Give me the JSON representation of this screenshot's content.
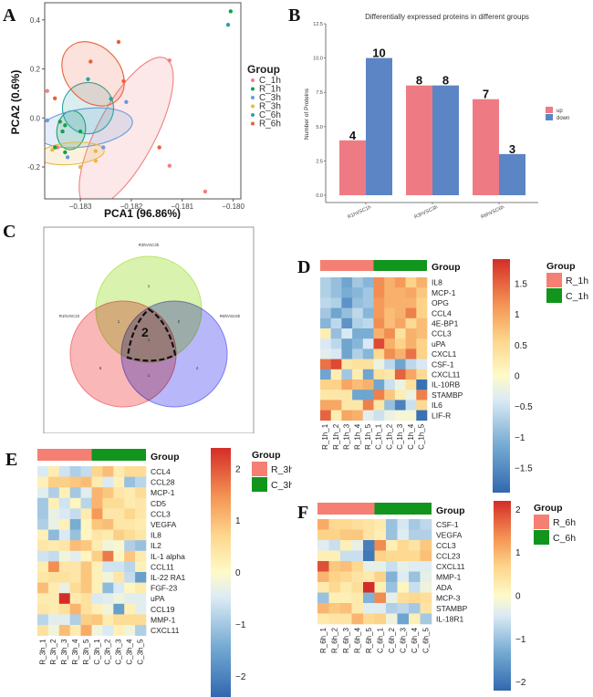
{
  "panels": {
    "A": {
      "letter": "A"
    },
    "B": {
      "letter": "B"
    },
    "C": {
      "letter": "C"
    },
    "D": {
      "letter": "D"
    },
    "E": {
      "letter": "E"
    },
    "F": {
      "letter": "F"
    }
  },
  "chart_data": [
    {
      "id": "A",
      "type": "scatter",
      "title": "",
      "xlabel": "PCA1 (96.86%)",
      "ylabel": "PCA2 (0.6%)",
      "xlim": [
        -0.1837,
        -0.17985
      ],
      "ylim": [
        -0.33,
        0.47
      ],
      "xticks": [
        -0.183,
        -0.182,
        -0.181,
        -0.18
      ],
      "xtick_labels": [
        "-0.183",
        "-0.182",
        "-0.181",
        "-0.180"
      ],
      "yticks": [
        -0.2,
        0.0,
        0.2,
        0.4
      ],
      "ytick_labels": [
        "-0.2",
        "0.0",
        "0.2",
        "0.4"
      ],
      "legend": {
        "title": "Group",
        "position": "right"
      },
      "ellipses": true,
      "series": [
        {
          "name": "C_1h",
          "color": "#f08080",
          "points": [
            [
              -0.18365,
              0.11
            ],
            [
              -0.18125,
              0.235
            ],
            [
              -0.18125,
              -0.195
            ],
            [
              -0.18055,
              -0.3
            ],
            [
              -0.18345,
              -0.12
            ]
          ],
          "ellipse": {
            "cx": -0.1821,
            "cy": -0.06,
            "rx": 0.00165,
            "ry": 0.215,
            "angle": -62
          }
        },
        {
          "name": "R_1h",
          "color": "#11a34a",
          "points": [
            [
              -0.18005,
              0.435
            ],
            [
              -0.1834,
              -0.015
            ],
            [
              -0.1833,
              -0.03
            ],
            [
              -0.18335,
              -0.055
            ],
            [
              -0.183,
              -0.055
            ],
            [
              -0.1833,
              -0.14
            ],
            [
              -0.1835,
              -0.12
            ]
          ],
          "ellipse": {
            "cx": -0.18318,
            "cy": -0.05,
            "rx": 0.00028,
            "ry": 0.145,
            "angle": 8
          }
        },
        {
          "name": "C_3h",
          "color": "#6a9bde",
          "points": [
            [
              -0.18365,
              -0.01
            ],
            [
              -0.18255,
              -0.12
            ],
            [
              -0.1821,
              0.065
            ],
            [
              -0.18325,
              -0.16
            ]
          ],
          "ellipse": {
            "cx": -0.18292,
            "cy": -0.04,
            "rx": 0.00095,
            "ry": 0.14,
            "angle": -8
          }
        },
        {
          "name": "R_3h",
          "color": "#e8b84a",
          "points": [
            [
              -0.183,
              -0.2
            ],
            [
              -0.1827,
              -0.135
            ],
            [
              -0.18355,
              -0.13
            ],
            [
              -0.1827,
              -0.175
            ]
          ],
          "ellipse": {
            "cx": -0.18318,
            "cy": -0.145,
            "rx": 0.00065,
            "ry": 0.055,
            "angle": -5
          }
        },
        {
          "name": "C_6h",
          "color": "#2aa3a3",
          "points": [
            [
              -0.1801,
              0.38
            ],
            [
              -0.18285,
              0.158
            ],
            [
              -0.1824,
              0.078
            ]
          ],
          "ellipse": {
            "cx": -0.18285,
            "cy": 0.04,
            "rx": 0.0005,
            "ry": 0.19,
            "angle": 35
          }
        },
        {
          "name": "R_6h",
          "color": "#e8603c",
          "points": [
            [
              -0.18225,
              0.31
            ],
            [
              -0.1828,
              0.23
            ],
            [
              -0.18215,
              0.15
            ],
            [
              -0.1835,
              0.08
            ],
            [
              -0.18145,
              -0.12
            ]
          ],
          "ellipse": {
            "cx": -0.18275,
            "cy": 0.18,
            "rx": 0.0007,
            "ry": 0.2,
            "angle": 48
          }
        }
      ]
    },
    {
      "id": "B",
      "type": "bar",
      "title": "Differentially expressed proteins in different groups",
      "xlabel": "",
      "ylabel": "Number of Proteins",
      "ylim": [
        0,
        12.5
      ],
      "yticks": [
        0.0,
        2.5,
        5.0,
        7.5,
        10.0,
        12.5
      ],
      "ytick_labels": [
        "0.0",
        "2.5",
        "5.0",
        "7.5",
        "10.0",
        "12.5"
      ],
      "categories": [
        "R1hVSC1h",
        "R3hVSC3h",
        "R6hVSC6h"
      ],
      "series": [
        {
          "name": "up",
          "color": "#ee7b84",
          "values": [
            4,
            8,
            7
          ]
        },
        {
          "name": "down",
          "color": "#5b85c5",
          "values": [
            10,
            8,
            3
          ]
        }
      ],
      "legend": {
        "position": "right",
        "entries": [
          "up",
          "down"
        ]
      }
    },
    {
      "id": "C",
      "type": "venn",
      "sets": [
        {
          "name": "R1hVSC1h",
          "color": "#f47c7c"
        },
        {
          "name": "R3hVSC3h",
          "color": "#b9e86a"
        },
        {
          "name": "R6hVSC6h",
          "color": "#7b7bf5"
        }
      ],
      "regions": {
        "R1h_only": 6,
        "R3h_only": 1,
        "R6h_only": 4,
        "R1h_R3h": 1,
        "R3h_R6h": 0,
        "R1h_R6h": 1,
        "all": 1
      },
      "highlight_label": "2"
    },
    {
      "id": "D",
      "type": "heatmap",
      "rows": [
        "IL8",
        "MCP-1",
        "OPG",
        "CCL4",
        "4E-BP1",
        "CCL3",
        "uPA",
        "CXCL1",
        "CSF-1",
        "CXCL11",
        "IL-10RB",
        "STAMBP",
        "IL6",
        "LIF-R"
      ],
      "cols": [
        "R_1h_1",
        "R_1h_2",
        "R_1h_3",
        "R_1h_4",
        "R_1h_5",
        "C_1h_1",
        "C_1h_2",
        "C_1h_3",
        "C_1h_4",
        "C_1h_5"
      ],
      "annotation": {
        "title": "Group",
        "groups": [
          {
            "name": "R_1h",
            "color": "#f47f72",
            "count": 5
          },
          {
            "name": "C_1h",
            "color": "#11951c",
            "count": 5
          }
        ]
      },
      "color_scale": {
        "min": -1.9,
        "max": 1.9,
        "ticks": [
          1.5,
          1,
          0.5,
          0,
          -0.5,
          -1,
          -1.5
        ],
        "tick_labels": [
          "1.5",
          "1",
          "0.5",
          "0",
          "-0.5",
          "-1",
          "-1.5"
        ]
      },
      "values": [
        [
          -0.7,
          -0.9,
          -1.2,
          -0.8,
          -1.0,
          1.2,
          0.9,
          1.1,
          0.6,
          0.9
        ],
        [
          -0.7,
          -0.9,
          -1.1,
          -1.0,
          -0.8,
          1.2,
          0.9,
          0.9,
          1.0,
          0.7
        ],
        [
          -0.6,
          -0.7,
          -1.4,
          -0.9,
          -0.8,
          1.1,
          0.9,
          0.9,
          0.9,
          0.6
        ],
        [
          -0.8,
          -1.2,
          -0.9,
          -0.6,
          -1.0,
          1.1,
          0.8,
          0.9,
          1.3,
          0.6
        ],
        [
          -1.0,
          -0.6,
          -1.4,
          -0.7,
          -0.6,
          1.2,
          0.8,
          1.0,
          0.5,
          0.8
        ],
        [
          0.2,
          -0.9,
          -0.4,
          -1.1,
          -1.1,
          0.9,
          1.2,
          0.4,
          0.9,
          0.8
        ],
        [
          -0.4,
          -0.6,
          -1.2,
          -1.0,
          -0.4,
          1.7,
          0.9,
          0.6,
          0.9,
          0.6
        ],
        [
          -0.3,
          -0.4,
          -1.2,
          -0.7,
          -1.0,
          0.5,
          1.2,
          0.9,
          1.4,
          0.6
        ],
        [
          1.4,
          1.7,
          0.3,
          0.4,
          0.4,
          -0.2,
          -0.6,
          -1.2,
          -0.6,
          -0.4
        ],
        [
          -1.2,
          0.2,
          -0.8,
          0.2,
          -1.2,
          0.4,
          0.3,
          1.5,
          1.0,
          0.5
        ],
        [
          0.6,
          0.6,
          1.0,
          0.8,
          0.9,
          -1.2,
          -0.5,
          -0.2,
          0.4,
          -1.8
        ],
        [
          0.3,
          0.3,
          0.3,
          -1.2,
          -1.2,
          1.3,
          0.7,
          0.2,
          -0.2,
          1.3
        ],
        [
          1.0,
          1.0,
          0.3,
          0.3,
          1.3,
          0.3,
          -0.9,
          -1.6,
          -0.5,
          0.5
        ],
        [
          1.5,
          0.2,
          1.0,
          0.9,
          -0.3,
          -0.5,
          -0.2,
          -0.1,
          -0.1,
          -1.8
        ]
      ]
    },
    {
      "id": "E",
      "type": "heatmap",
      "rows": [
        "CCL4",
        "CCL28",
        "MCP-1",
        "CD5",
        "CCL3",
        "VEGFA",
        "IL8",
        "IL2",
        "IL-1 alpha",
        "CCL11",
        "IL-22 RA1",
        "FGF-23",
        "uPA",
        "CCL19",
        "MMP-1",
        "CXCL11"
      ],
      "cols": [
        "R_3h_1",
        "R_3h_2",
        "R_3h_3",
        "R_3h_4",
        "R_3h_5",
        "C_3h_1",
        "C_3h_2",
        "C_3h_3",
        "C_3h_4",
        "C_3h_5"
      ],
      "annotation": {
        "title": "Group",
        "groups": [
          {
            "name": "R_3h",
            "color": "#f47f72",
            "count": 5
          },
          {
            "name": "C_3h",
            "color": "#11951c",
            "count": 5
          }
        ]
      },
      "color_scale": {
        "min": -2.4,
        "max": 2.4,
        "ticks": [
          2,
          1,
          0,
          -1,
          -2
        ],
        "tick_labels": [
          "2",
          "1",
          "0",
          "-1",
          "-2"
        ]
      },
      "values": [
        [
          -0.5,
          0.3,
          -0.6,
          -0.9,
          -0.7,
          0.7,
          1.0,
          0.3,
          0.6,
          0.6
        ],
        [
          0.2,
          0.8,
          0.8,
          0.9,
          1.0,
          0.3,
          -0.5,
          0.2,
          -1.1,
          -0.8
        ],
        [
          -0.4,
          -0.9,
          0.2,
          -1.0,
          -0.4,
          1.1,
          0.9,
          0.4,
          0.3,
          0.6
        ],
        [
          -1.0,
          0.2,
          -0.6,
          0.1,
          -0.8,
          1.1,
          0.6,
          0.6,
          0.3,
          0.4
        ],
        [
          -1.0,
          -0.3,
          -0.5,
          -0.7,
          0.3,
          1.4,
          0.4,
          0.4,
          0.7,
          0.4
        ],
        [
          -0.9,
          -0.3,
          0.2,
          -1.4,
          0.1,
          0.9,
          1.0,
          0.4,
          0.4,
          0.3
        ],
        [
          0.2,
          -1.2,
          -0.5,
          -1.1,
          0.1,
          0.4,
          0.3,
          0.8,
          0.6,
          0.4
        ],
        [
          0.4,
          0.3,
          0.4,
          1.0,
          0.9,
          0.3,
          -0.2,
          -0.1,
          -0.9,
          -1.1
        ],
        [
          -0.6,
          -0.7,
          -0.2,
          -0.4,
          0.1,
          0.8,
          1.7,
          0.1,
          0.9,
          0.3
        ],
        [
          0.3,
          1.5,
          0.4,
          0.4,
          0.9,
          0.2,
          -0.6,
          -0.6,
          -0.8,
          0.2
        ],
        [
          0.4,
          0.5,
          0.5,
          0.4,
          0.9,
          0.2,
          -0.2,
          0.4,
          -0.7,
          -1.6
        ],
        [
          1.0,
          0.3,
          -0.3,
          0.6,
          0.9,
          0.2,
          -1.2,
          -0.5,
          0.1,
          0.3
        ],
        [
          0.3,
          0.3,
          2.4,
          0.3,
          0.5,
          -0.5,
          -0.4,
          -0.2,
          -0.4,
          -0.4
        ],
        [
          0.4,
          0.3,
          0.5,
          1.1,
          0.5,
          0.2,
          -0.2,
          -1.6,
          0.2,
          -0.4
        ],
        [
          -0.8,
          -0.4,
          -0.4,
          -0.9,
          0.8,
          0.9,
          0.3,
          0.6,
          0.6,
          0.6
        ],
        [
          0.5,
          -0.2,
          1.0,
          0.3,
          1.2,
          -0.2,
          -0.5,
          0.2,
          -0.2,
          -0.9
        ]
      ]
    },
    {
      "id": "F",
      "type": "heatmap",
      "rows": [
        "CSF-1",
        "VEGFA",
        "CCL3",
        "CCL23",
        "CXCL11",
        "MMP-1",
        "ADA",
        "MCP-3",
        "STAMBP",
        "IL-18R1"
      ],
      "cols": [
        "R_6h_1",
        "R_6h_2",
        "R_6h_3",
        "R_6h_4",
        "R_6h_5",
        "C_6h_1",
        "C_6h_2",
        "C_6h_3",
        "C_6h_4",
        "C_6h_5"
      ],
      "annotation": {
        "title": "Group",
        "groups": [
          {
            "name": "R_6h",
            "color": "#f47f72",
            "count": 5
          },
          {
            "name": "C_6h",
            "color": "#11951c",
            "count": 5
          }
        ]
      },
      "color_scale": {
        "min": -2.2,
        "max": 2.2,
        "ticks": [
          2,
          1,
          0,
          -1,
          -2
        ],
        "tick_labels": [
          "2",
          "1",
          "0",
          "-1",
          "-2"
        ]
      },
      "values": [
        [
          1.1,
          0.6,
          0.6,
          0.5,
          0.4,
          0.3,
          -1.0,
          -0.5,
          -0.9,
          -0.7
        ],
        [
          0.7,
          0.7,
          0.8,
          0.8,
          0.4,
          0.2,
          -1.0,
          -0.4,
          -0.8,
          -0.8
        ],
        [
          -0.4,
          -0.6,
          0.2,
          -0.3,
          -1.9,
          1.4,
          0.2,
          0.6,
          0.4,
          0.8
        ],
        [
          0.2,
          0.2,
          -0.6,
          -0.6,
          -2.0,
          0.7,
          0.6,
          0.6,
          0.6,
          0.9
        ],
        [
          1.9,
          0.8,
          0.9,
          0.6,
          -0.3,
          -0.3,
          -0.6,
          -0.3,
          -0.4,
          -0.4
        ],
        [
          1.0,
          0.7,
          0.6,
          0.4,
          0.3,
          0.7,
          -1.2,
          -0.4,
          -1.0,
          -0.3
        ],
        [
          0.3,
          0.6,
          0.3,
          0.5,
          2.2,
          0.2,
          -1.0,
          0.1,
          -0.6,
          -0.2
        ],
        [
          -1.0,
          0.2,
          0.2,
          0.3,
          -1.2,
          1.4,
          -0.3,
          0.5,
          0.6,
          0.5
        ],
        [
          1.0,
          0.8,
          0.9,
          0.3,
          -0.4,
          -0.4,
          -0.8,
          -0.7,
          -0.9,
          0.4
        ],
        [
          0.3,
          0.4,
          0.4,
          1.0,
          0.6,
          0.7,
          -0.2,
          -1.4,
          0.2,
          -0.9
        ]
      ]
    }
  ]
}
